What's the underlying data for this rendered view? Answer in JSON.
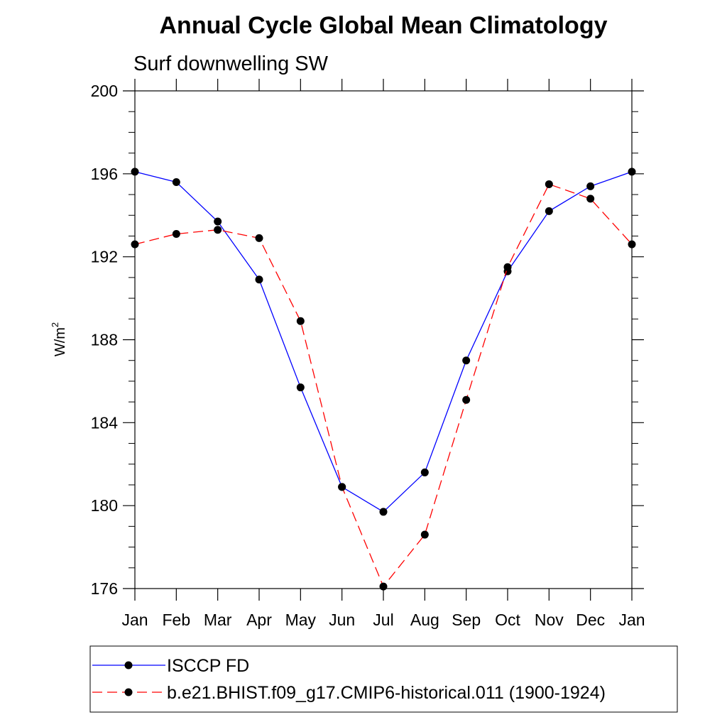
{
  "chart_data": {
    "type": "line",
    "title": "Annual Cycle Global Mean Climatology",
    "subtitle": "Surf downwelling SW",
    "xlabel": "",
    "ylabel": "W/m",
    "ylabel_superscript": "2",
    "categories": [
      "Jan",
      "Feb",
      "Mar",
      "Apr",
      "May",
      "Jun",
      "Jul",
      "Aug",
      "Sep",
      "Oct",
      "Nov",
      "Dec",
      "Jan"
    ],
    "ylim": [
      176,
      200
    ],
    "yticks": [
      176,
      180,
      184,
      188,
      192,
      196,
      200
    ],
    "grid": false,
    "legend_position": "bottom",
    "series": [
      {
        "name": "ISCCP FD",
        "color": "#0000ff",
        "dash": "solid",
        "values": [
          196.1,
          195.6,
          193.7,
          190.9,
          185.7,
          180.9,
          179.7,
          181.6,
          187.0,
          191.3,
          194.2,
          195.4,
          196.1
        ]
      },
      {
        "name": "b.e21.BHIST.f09_g17.CMIP6-historical.011 (1900-1924)",
        "color": "#ff0000",
        "dash": "dashed",
        "values": [
          192.6,
          193.1,
          193.3,
          192.9,
          188.9,
          180.9,
          176.1,
          178.6,
          185.1,
          191.5,
          195.5,
          194.8,
          192.6
        ]
      }
    ]
  }
}
